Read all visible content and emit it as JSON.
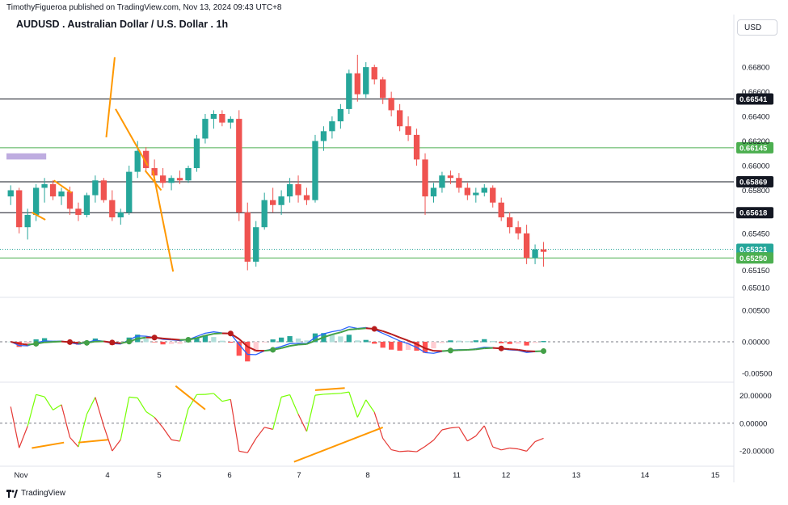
{
  "header": {
    "publisher_line": "TimothyFigueroa published on TradingView.com, Nov 13, 2024 09:43 UTC+8",
    "title": "AUDUSD . Australian Dollar / U.S. Dollar . 1h",
    "currency": "USD"
  },
  "footer": {
    "brand": "TradingView"
  },
  "colors": {
    "up": "#26a69a",
    "down": "#ef5350",
    "trend": "#ff9800",
    "black_line": "#131722",
    "green_line": "#4caf50",
    "zone": "#b39ddb",
    "macd": "#2962ff",
    "signal_up": "#43a047",
    "signal_down": "#b71c1c",
    "osc_up": "#76ff03",
    "osc_down": "#e53935"
  },
  "chart_data": [
    {
      "type": "candlestick",
      "panel": "price",
      "title": "AUDUSD . Australian Dollar / U.S. Dollar . 1h",
      "x_ticks": [
        "Nov",
        "4",
        "5",
        "6",
        "7",
        "8",
        "11",
        "12",
        "13",
        "14",
        "15"
      ],
      "y_ticks": [
        "0.66800",
        "0.66600",
        "0.66400",
        "0.66200",
        "0.66000",
        "0.65800",
        "0.65450",
        "0.65150",
        "0.65010"
      ],
      "ylim": [
        0.6495,
        0.6705
      ],
      "price_levels": [
        {
          "label": "0.66541",
          "value": 0.66541,
          "style": "black"
        },
        {
          "label": "0.66145",
          "value": 0.66145,
          "style": "green"
        },
        {
          "label": "0.65869",
          "value": 0.65869,
          "style": "black"
        },
        {
          "label": "0.65618",
          "value": 0.65618,
          "style": "black"
        },
        {
          "label": "0.65321",
          "value": 0.65321,
          "style": "last"
        },
        {
          "label": "0.65250",
          "value": 0.6525,
          "style": "green"
        }
      ],
      "zone": {
        "x": [
          0,
          4.7
        ],
        "y": [
          0.6605,
          0.661
        ]
      },
      "trendlines": [
        {
          "x": [
            2.5,
            4.1
          ],
          "y": [
            0.6562,
            0.6556
          ]
        },
        {
          "x": [
            5.1,
            7.2
          ],
          "y": [
            0.6588,
            0.6578
          ]
        },
        {
          "x": [
            11.3,
            12.3
          ],
          "y": [
            0.6623,
            0.6688
          ]
        },
        {
          "x": [
            12.4,
            16.2
          ],
          "y": [
            0.6646,
            0.66
          ]
        },
        {
          "x": [
            15.9,
            17.8
          ],
          "y": [
            0.6596,
            0.658
          ]
        },
        {
          "x": [
            16.8,
            19.2
          ],
          "y": [
            0.6596,
            0.6514
          ]
        }
      ],
      "ohlc": [
        [
          0.6575,
          0.6584,
          0.6568,
          0.658
        ],
        [
          0.658,
          0.6582,
          0.6545,
          0.655
        ],
        [
          0.655,
          0.6565,
          0.654,
          0.656
        ],
        [
          0.656,
          0.6585,
          0.6555,
          0.6582
        ],
        [
          0.6582,
          0.659,
          0.657,
          0.6585
        ],
        [
          0.6585,
          0.6588,
          0.6572,
          0.6575
        ],
        [
          0.6575,
          0.6582,
          0.6568,
          0.6579
        ],
        [
          0.6579,
          0.6583,
          0.656,
          0.6565
        ],
        [
          0.6565,
          0.657,
          0.6555,
          0.656
        ],
        [
          0.656,
          0.6578,
          0.6558,
          0.6576
        ],
        [
          0.6576,
          0.6592,
          0.657,
          0.6588
        ],
        [
          0.6588,
          0.659,
          0.657,
          0.6572
        ],
        [
          0.6572,
          0.658,
          0.6555,
          0.6558
        ],
        [
          0.6558,
          0.6565,
          0.6552,
          0.6562
        ],
        [
          0.6562,
          0.66,
          0.656,
          0.6595
        ],
        [
          0.6595,
          0.662,
          0.659,
          0.6612
        ],
        [
          0.6612,
          0.6615,
          0.6595,
          0.6598
        ],
        [
          0.6598,
          0.6605,
          0.6588,
          0.6592
        ],
        [
          0.6592,
          0.6598,
          0.6582,
          0.6586
        ],
        [
          0.6586,
          0.6592,
          0.658,
          0.659
        ],
        [
          0.659,
          0.6596,
          0.6585,
          0.6588
        ],
        [
          0.6588,
          0.66,
          0.6586,
          0.6598
        ],
        [
          0.6598,
          0.6625,
          0.6595,
          0.6622
        ],
        [
          0.6622,
          0.6642,
          0.6618,
          0.6638
        ],
        [
          0.6638,
          0.6645,
          0.663,
          0.6642
        ],
        [
          0.6642,
          0.6645,
          0.6632,
          0.6635
        ],
        [
          0.6635,
          0.664,
          0.663,
          0.6638
        ],
        [
          0.6638,
          0.6645,
          0.6555,
          0.6562
        ],
        [
          0.6562,
          0.657,
          0.6515,
          0.6522
        ],
        [
          0.6522,
          0.6555,
          0.6518,
          0.655
        ],
        [
          0.655,
          0.6578,
          0.6548,
          0.6572
        ],
        [
          0.6572,
          0.6582,
          0.6562,
          0.6568
        ],
        [
          0.6568,
          0.658,
          0.656,
          0.6575
        ],
        [
          0.6575,
          0.659,
          0.657,
          0.6585
        ],
        [
          0.6585,
          0.6592,
          0.657,
          0.6576
        ],
        [
          0.6576,
          0.6582,
          0.6568,
          0.6572
        ],
        [
          0.6572,
          0.6625,
          0.657,
          0.662
        ],
        [
          0.662,
          0.6632,
          0.6612,
          0.6628
        ],
        [
          0.6628,
          0.664,
          0.6622,
          0.6636
        ],
        [
          0.6636,
          0.665,
          0.663,
          0.6646
        ],
        [
          0.6646,
          0.6678,
          0.6642,
          0.6675
        ],
        [
          0.6675,
          0.669,
          0.6652,
          0.6658
        ],
        [
          0.6658,
          0.6684,
          0.6655,
          0.668
        ],
        [
          0.668,
          0.6682,
          0.6666,
          0.667
        ],
        [
          0.667,
          0.6672,
          0.665,
          0.6655
        ],
        [
          0.6655,
          0.666,
          0.664,
          0.6645
        ],
        [
          0.6645,
          0.665,
          0.6628,
          0.6632
        ],
        [
          0.6632,
          0.664,
          0.662,
          0.6625
        ],
        [
          0.6625,
          0.663,
          0.66,
          0.6605
        ],
        [
          0.6605,
          0.661,
          0.656,
          0.6575
        ],
        [
          0.6575,
          0.6586,
          0.657,
          0.6582
        ],
        [
          0.6582,
          0.6595,
          0.6578,
          0.6592
        ],
        [
          0.6592,
          0.6596,
          0.6585,
          0.659
        ],
        [
          0.659,
          0.6594,
          0.6578,
          0.6582
        ],
        [
          0.6582,
          0.6586,
          0.6572,
          0.6576
        ],
        [
          0.6576,
          0.6582,
          0.657,
          0.6578
        ],
        [
          0.6578,
          0.6585,
          0.6575,
          0.6582
        ],
        [
          0.6582,
          0.6584,
          0.6566,
          0.657
        ],
        [
          0.657,
          0.6574,
          0.6555,
          0.6558
        ],
        [
          0.6558,
          0.6562,
          0.6545,
          0.655
        ],
        [
          0.655,
          0.6555,
          0.654,
          0.6545
        ],
        [
          0.6545,
          0.6552,
          0.652,
          0.6525
        ],
        [
          0.6525,
          0.6536,
          0.652,
          0.6532
        ],
        [
          0.6532,
          0.6538,
          0.6518,
          0.653
        ]
      ]
    },
    {
      "type": "line",
      "panel": "macd",
      "y_ticks": [
        "0.00500",
        "0.00000",
        "-0.00500"
      ],
      "ylim": [
        -0.006,
        0.0065
      ]
    },
    {
      "type": "line",
      "panel": "oscillator",
      "y_ticks": [
        "20.00000",
        "0.00000",
        "-20.00000"
      ],
      "ylim": [
        -30,
        28
      ]
    }
  ]
}
